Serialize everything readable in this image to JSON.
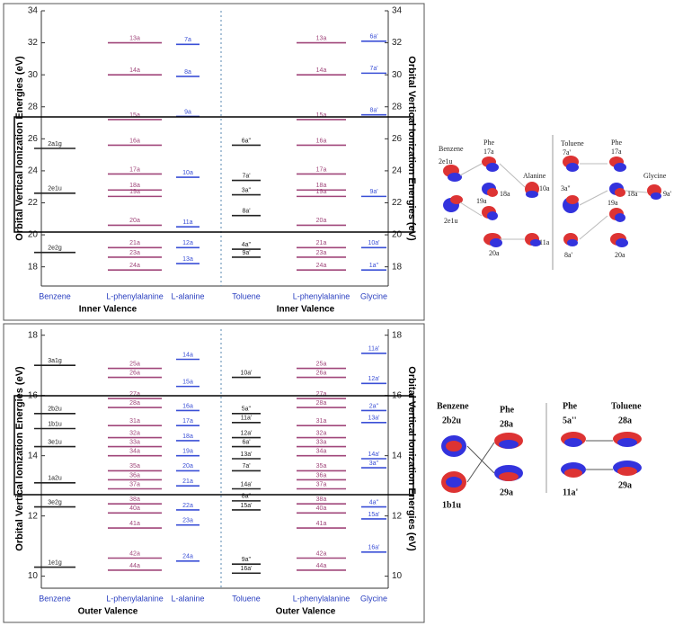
{
  "chart_data": [
    {
      "type": "level",
      "ylabel": "Orbital Vertical Ionization Energies (eV)",
      "y2label": "Orbital Vertical Ionization Energies (eV)",
      "ylim": [
        16.8,
        34
      ],
      "yticks": [
        18,
        20,
        22,
        24,
        26,
        28,
        30,
        32,
        34
      ],
      "groups": [
        "Inner Valence",
        "Inner Valence"
      ],
      "series": [
        {
          "name": "Benzene",
          "color": "#222222",
          "values": [
            25.4,
            22.6,
            18.9
          ],
          "labels": [
            "2a1g",
            "2e1u",
            "2e2g"
          ]
        },
        {
          "name": "L-phenylalanine",
          "color": "#a0467a",
          "values": [
            32,
            30,
            27.2,
            25.6,
            23.8,
            22.8,
            22.4,
            20.6,
            19.2,
            18.6,
            17.8
          ],
          "labels": [
            "13a",
            "14a",
            "15a",
            "16a",
            "17a",
            "18a",
            "19a",
            "20a",
            "21a",
            "23a",
            "24a"
          ]
        },
        {
          "name": "L-alanine",
          "color": "#3a4fd6",
          "values": [
            31.9,
            29.9,
            27.4,
            23.6,
            20.5,
            19.2,
            18.2
          ],
          "labels": [
            "7a",
            "8a",
            "9a",
            "10a",
            "11a",
            "12a",
            "13a"
          ]
        },
        {
          "name": "Toluene",
          "color": "#222222",
          "values": [
            25.6,
            23.4,
            22.5,
            21.2,
            19.1,
            18.6
          ],
          "labels": [
            "6a''",
            "7a'",
            "3a''",
            "8a'",
            "4a''",
            "9a'"
          ]
        },
        {
          "name": "L-phenylalanine",
          "color": "#a0467a",
          "values": [
            32,
            30,
            27.2,
            25.6,
            23.8,
            22.8,
            22.4,
            20.6,
            19.2,
            18.6,
            17.8
          ],
          "labels": [
            "13a",
            "14a",
            "15a",
            "16a",
            "17a",
            "18a",
            "19a",
            "20a",
            "21a",
            "23a",
            "24a"
          ]
        },
        {
          "name": "Glycine",
          "color": "#3a4fd6",
          "values": [
            32.1,
            30.1,
            27.5,
            22.4,
            19.2,
            17.8
          ],
          "labels": [
            "6a'",
            "7a'",
            "8a'",
            "9a'",
            "10a'",
            "1a''"
          ]
        }
      ]
    },
    {
      "type": "level",
      "ylabel": "Orbital Vertical Ionization Energies (eV)",
      "y2label": "Orbital Vertical Ionization Energies (eV)",
      "ylim": [
        9.6,
        18.2
      ],
      "yticks": [
        10,
        12,
        14,
        16,
        18
      ],
      "groups": [
        "Outer Valence",
        "Outer Valence"
      ],
      "series": [
        {
          "name": "Benzene",
          "color": "#222222",
          "values": [
            17.0,
            15.4,
            14.9,
            14.3,
            13.1,
            12.3,
            10.3
          ],
          "labels": [
            "3a1g",
            "2b2u",
            "1b1u",
            "3e1u",
            "1a2u",
            "3e2g",
            "1e1g"
          ]
        },
        {
          "name": "L-phenylalanine",
          "color": "#a0467a",
          "values": [
            16.9,
            16.6,
            15.9,
            15.6,
            15.0,
            14.6,
            14.3,
            14.0,
            13.5,
            13.2,
            12.9,
            12.4,
            12.1,
            11.6,
            10.6,
            10.2
          ],
          "labels": [
            "25a",
            "26a",
            "27a",
            "28a",
            "31a",
            "32a",
            "33a",
            "34a",
            "35a",
            "36a",
            "37a",
            "38a",
            "40a",
            "41a",
            "42a",
            "44a"
          ]
        },
        {
          "name": "L-alanine",
          "color": "#3a4fd6",
          "values": [
            17.2,
            16.3,
            15.5,
            15.0,
            14.5,
            14.0,
            13.5,
            13.0,
            12.2,
            11.7,
            10.5
          ],
          "labels": [
            "14a",
            "15a",
            "16a",
            "17a",
            "18a",
            "19a",
            "20a",
            "21a",
            "22a",
            "23a",
            "24a"
          ]
        },
        {
          "name": "Toluene",
          "color": "#222222",
          "values": [
            16.6,
            15.4,
            15.1,
            14.6,
            14.3,
            13.9,
            13.5,
            12.9,
            12.5,
            12.2,
            10.4,
            10.1
          ],
          "labels": [
            "10a'",
            "5a''",
            "11a'",
            "12a'",
            "6a'",
            "13a'",
            "7a'",
            "14a'",
            "8a''",
            "15a'",
            "9a''",
            "16a'"
          ]
        },
        {
          "name": "L-phenylalanine",
          "color": "#a0467a",
          "values": [
            16.9,
            16.6,
            15.9,
            15.6,
            15.0,
            14.6,
            14.3,
            14.0,
            13.5,
            13.2,
            12.9,
            12.4,
            12.1,
            11.6,
            10.6,
            10.2
          ],
          "labels": [
            "25a",
            "26a",
            "27a",
            "28a",
            "31a",
            "32a",
            "33a",
            "34a",
            "35a",
            "36a",
            "37a",
            "38a",
            "40a",
            "41a",
            "42a",
            "44a"
          ]
        },
        {
          "name": "Glycine",
          "color": "#3a4fd6",
          "values": [
            17.4,
            16.4,
            15.5,
            15.1,
            13.9,
            13.6,
            12.3,
            11.9,
            10.8
          ],
          "labels": [
            "11a'",
            "12a'",
            "2a''",
            "13a'",
            "14a'",
            "3a''",
            "4a''",
            "15a'",
            "16a'"
          ]
        }
      ]
    }
  ],
  "orbitals_top": {
    "labels": [
      "Benzene",
      "2e1u",
      "Phe",
      "17a",
      "18a",
      "19a",
      "20a",
      "Alanine",
      "10a",
      "11a",
      "2e1u",
      "Toluene",
      "7a'",
      "3a''",
      "8a'",
      "Phe",
      "17a",
      "18a",
      "19a",
      "20a",
      "Glycine",
      "9a'"
    ]
  },
  "orbitals_bottom": {
    "labels": [
      "Benzene",
      "2b2u",
      "Phe",
      "28a",
      "29a",
      "1b1u",
      "Phe",
      "5a''",
      "11a'",
      "Toluene",
      "28a",
      "29a"
    ]
  }
}
